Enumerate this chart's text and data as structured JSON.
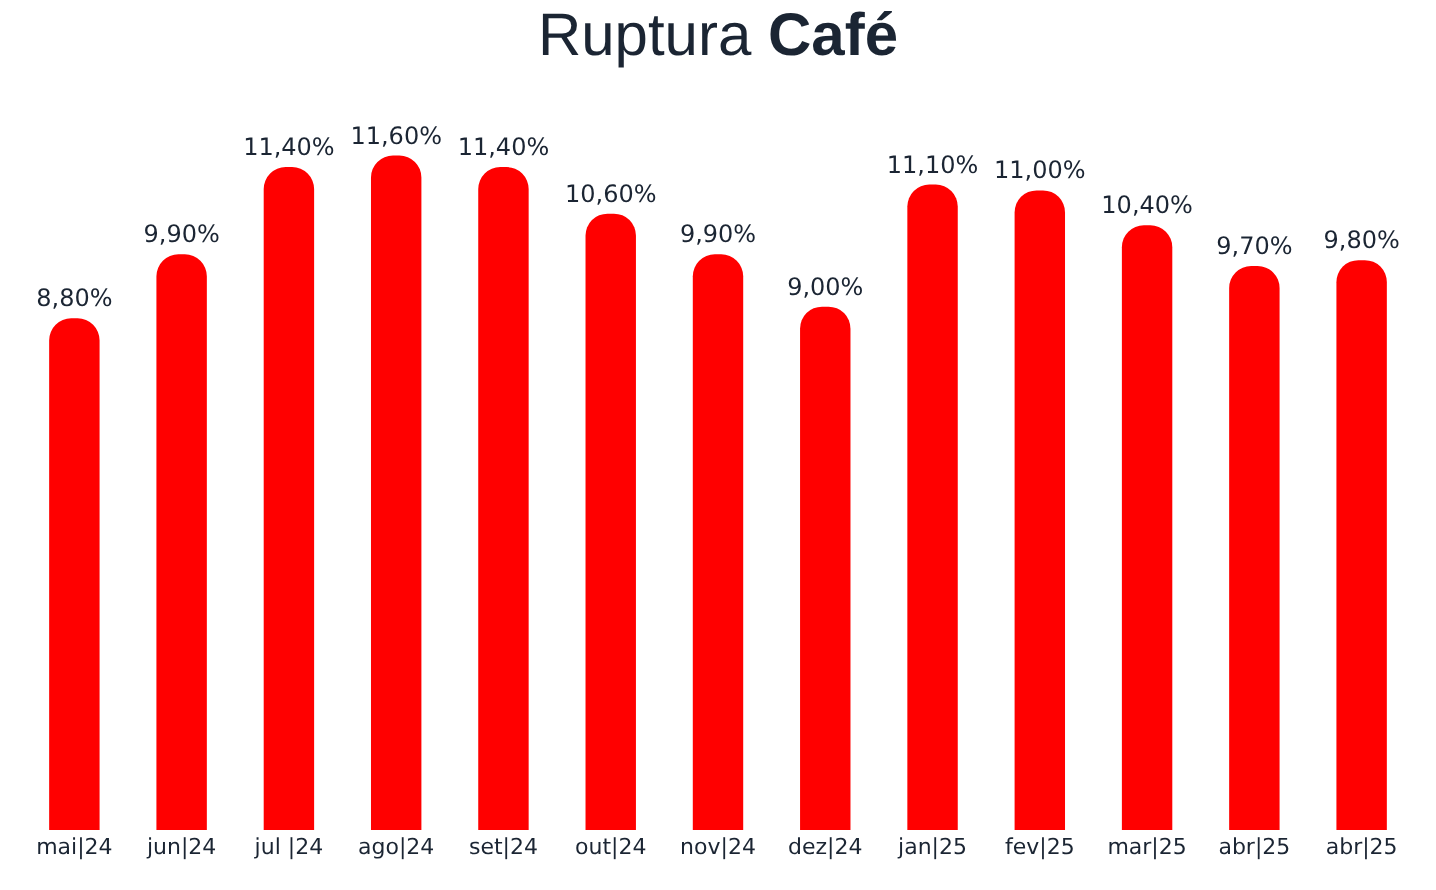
{
  "chart_data": {
    "type": "bar",
    "title": "Ruptura Café",
    "categories": [
      "mai|24",
      "jun|24",
      "jul |24",
      "ago|24",
      "set|24",
      "out|24",
      "nov|24",
      "dez|24",
      "jan|25",
      "fev|25",
      "mar|25",
      "abr|25",
      "abr|25"
    ],
    "values": [
      8.8,
      9.9,
      11.4,
      11.6,
      11.4,
      10.6,
      9.9,
      9.0,
      11.1,
      11.0,
      10.4,
      9.7,
      9.8
    ],
    "value_labels": [
      "8,80%",
      "9,90%",
      "11,40%",
      "11,60%",
      "11,40%",
      "10,60%",
      "9,90%",
      "9,00%",
      "11,10%",
      "11,00%",
      "10,40%",
      "9,70%",
      "9,80%"
    ],
    "color": "#ff0000",
    "tick_labels": "x"
  }
}
